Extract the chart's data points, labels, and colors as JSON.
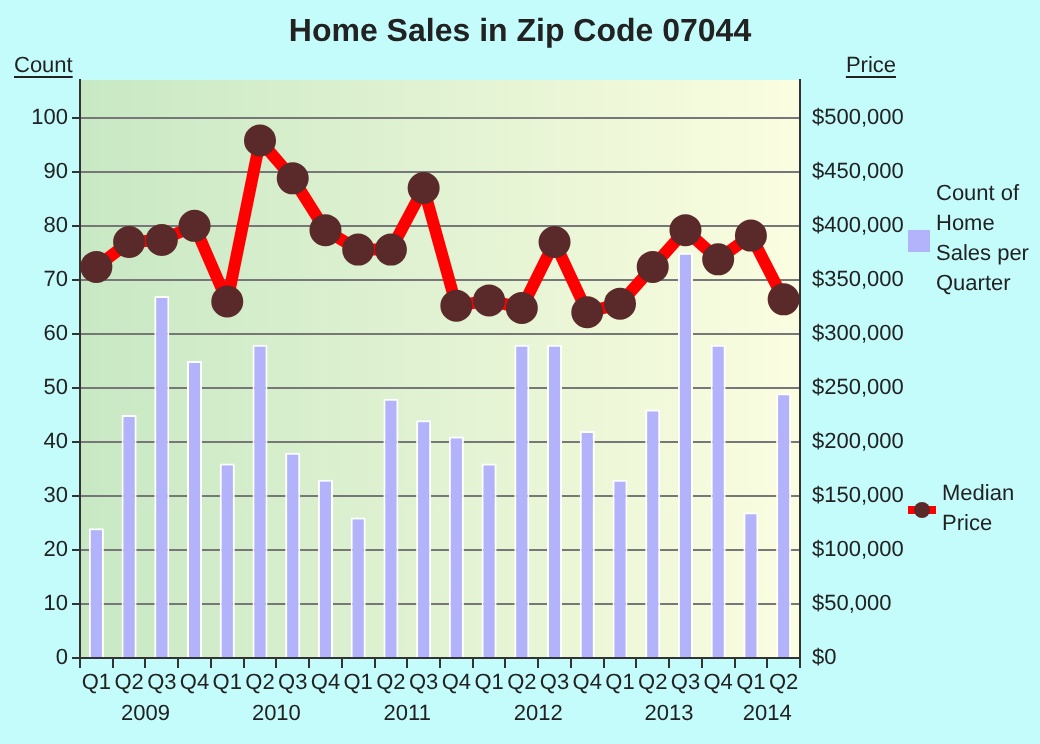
{
  "chart_data": {
    "type": "bar",
    "title": "Home Sales in Zip Code 07044",
    "ylabel": "Count",
    "y2label": "Price",
    "categories": [
      "Q1",
      "Q2",
      "Q3",
      "Q4",
      "Q1",
      "Q2",
      "Q3",
      "Q4",
      "Q1",
      "Q2",
      "Q3",
      "Q4",
      "Q1",
      "Q2",
      "Q3",
      "Q4",
      "Q1",
      "Q2",
      "Q3",
      "Q4",
      "Q1",
      "Q2"
    ],
    "annotations": [
      "2009",
      "2010",
      "2011",
      "2012",
      "2013",
      "2014"
    ],
    "series": [
      {
        "name": "Count of Home Sales per Quarter",
        "color": "#b3b3fb",
        "values": [
          24,
          45,
          67,
          55,
          36,
          58,
          38,
          33,
          26,
          48,
          44,
          41,
          36,
          58,
          58,
          42,
          33,
          46,
          75,
          58,
          27,
          49
        ]
      },
      {
        "name": "Median Price",
        "type": "line",
        "axis": "y2",
        "color": "#ff0000",
        "marker": "circle",
        "values": [
          362000,
          385000,
          387000,
          400000,
          330000,
          479000,
          444000,
          396000,
          378000,
          378000,
          435000,
          326000,
          331000,
          324000,
          385000,
          320000,
          328000,
          362000,
          396000,
          369000,
          391000,
          332000
        ]
      }
    ],
    "ylim": [
      0,
      107
    ],
    "yticks": [
      0,
      10,
      20,
      30,
      40,
      50,
      60,
      70,
      80,
      90,
      100
    ],
    "y2lim": [
      0,
      535000
    ],
    "y2ticks": [
      {
        "value": 0,
        "label": "$0"
      },
      {
        "value": 50000,
        "label": "$50,000"
      },
      {
        "value": 100000,
        "label": "$100,000"
      },
      {
        "value": 150000,
        "label": "$150,000"
      },
      {
        "value": 200000,
        "label": "$200,000"
      },
      {
        "value": 250000,
        "label": "$250,000"
      },
      {
        "value": 300000,
        "label": "$300,000"
      },
      {
        "value": 350000,
        "label": "$350,000"
      },
      {
        "value": 400000,
        "label": "$400,000"
      },
      {
        "value": 450000,
        "label": "$450,000"
      },
      {
        "value": 500000,
        "label": "$500,000"
      }
    ],
    "grid": "y",
    "legend": "right"
  }
}
